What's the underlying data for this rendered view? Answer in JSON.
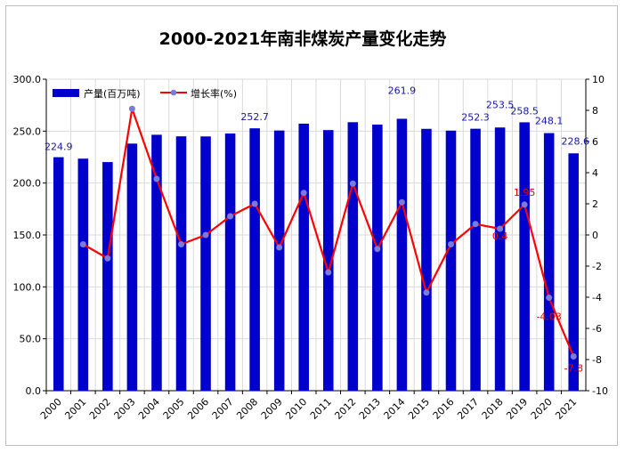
{
  "chart_data": {
    "type": "bar",
    "title": "2000-2021年南非煤炭产量变化走势",
    "categories": [
      "2000",
      "2001",
      "2002",
      "2003",
      "2004",
      "2005",
      "2006",
      "2007",
      "2008",
      "2009",
      "2010",
      "2011",
      "2012",
      "2013",
      "2014",
      "2015",
      "2016",
      "2017",
      "2018",
      "2019",
      "2020",
      "2021"
    ],
    "series": [
      {
        "name": "产量(百万吨)",
        "type": "bar",
        "axis": "left",
        "color": "#0000cc",
        "values": [
          224.9,
          223.5,
          220.2,
          238.0,
          246.5,
          245.0,
          244.9,
          247.7,
          252.7,
          250.6,
          257.2,
          251.0,
          258.6,
          256.3,
          261.9,
          252.2,
          250.5,
          252.3,
          253.5,
          258.5,
          248.1,
          228.6
        ]
      },
      {
        "name": "增长率(%)",
        "type": "line",
        "axis": "right",
        "color": "#ff0000",
        "values": [
          null,
          -0.6,
          -1.5,
          8.1,
          3.6,
          -0.6,
          0.0,
          1.2,
          2.0,
          -0.8,
          2.7,
          -2.4,
          3.3,
          -0.9,
          2.1,
          -3.7,
          -0.6,
          0.7,
          0.4,
          1.95,
          -4.03,
          -7.8
        ]
      }
    ],
    "bar_labels": [
      {
        "index": 0,
        "text": "224.9"
      },
      {
        "index": 8,
        "text": "252.7"
      },
      {
        "index": 14,
        "text": "261.9"
      },
      {
        "index": 17,
        "text": "252.3"
      },
      {
        "index": 18,
        "text": "253.5"
      },
      {
        "index": 19,
        "text": "258.5"
      },
      {
        "index": 20,
        "text": "248.1"
      },
      {
        "index": 21,
        "text": "228.6"
      }
    ],
    "line_labels": [
      {
        "index": 18,
        "text": "0.4"
      },
      {
        "index": 19,
        "text": "1.95"
      },
      {
        "index": 20,
        "text": "-4.03"
      },
      {
        "index": 21,
        "text": "-7.8"
      }
    ],
    "left_axis": {
      "min": 0,
      "max": 300,
      "step": 50,
      "ticks": [
        "0.0",
        "50.0",
        "100.0",
        "150.0",
        "200.0",
        "250.0",
        "300.0"
      ]
    },
    "right_axis": {
      "min": -10,
      "max": 10,
      "step": 2,
      "ticks": [
        "-10",
        "-8",
        "-6",
        "-4",
        "-2",
        "0",
        "2",
        "4",
        "6",
        "8",
        "10"
      ]
    },
    "legend": {
      "placement": "top-left",
      "bar_label": "产量(百万吨)",
      "line_label": "增长率(%)"
    },
    "grid": true
  }
}
